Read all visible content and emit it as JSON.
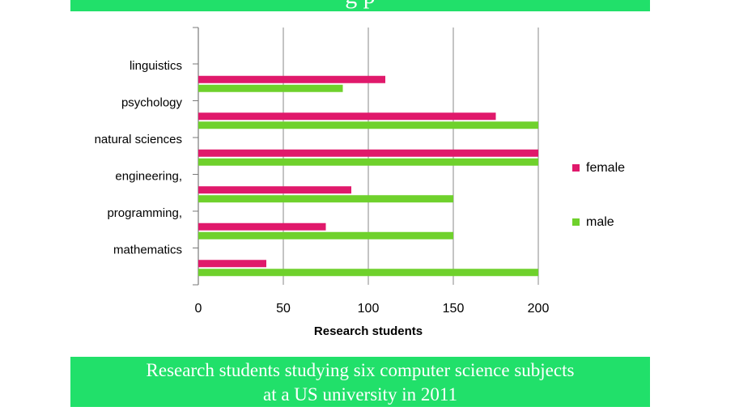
{
  "top_banner": {
    "partial_title": "g                    p"
  },
  "caption": {
    "line1": "Research students studying six computer science subjects",
    "line2": "at a US university in 2011"
  },
  "chart_data": {
    "type": "bar",
    "orientation": "horizontal",
    "categories": [
      "linguistics",
      "psychology",
      "natural sciences",
      "engineering,",
      "programming,",
      "mathematics"
    ],
    "series": [
      {
        "name": "female",
        "values": [
          110,
          175,
          200,
          90,
          75,
          40
        ],
        "color": "#e0196b"
      },
      {
        "name": "male",
        "values": [
          85,
          200,
          200,
          150,
          150,
          200
        ],
        "color": "#6fd12c"
      }
    ],
    "xlabel": "Research students",
    "ylabel": "",
    "xlim": [
      0,
      200
    ],
    "xticks": [
      "0",
      "50",
      "100",
      "150",
      "200"
    ],
    "grid": true,
    "legend_position": "right"
  }
}
